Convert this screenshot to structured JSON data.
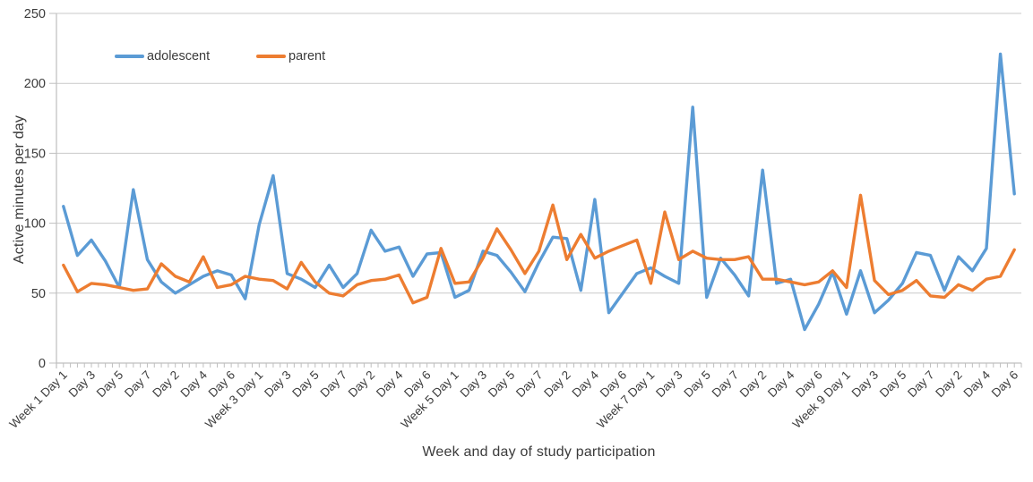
{
  "legend": {
    "items": [
      {
        "label": "adolescent",
        "color": "#5B9BD5"
      },
      {
        "label": "parent",
        "color": "#ED7D31"
      }
    ]
  },
  "chart_data": {
    "type": "line",
    "title": "",
    "xlabel": "Week and day of study participation",
    "ylabel": "Active minutes per day",
    "ylim": [
      0,
      250
    ],
    "yticks": [
      0,
      50,
      100,
      150,
      200,
      250
    ],
    "grid": true,
    "legend_position": "top-left-inside",
    "label_every_n_points": 2,
    "x_tick_labels": [
      "Week 1 Day 1",
      "Day 3",
      "Day 5",
      "Day 7",
      "Day 2",
      "Day 4",
      "Day 6",
      "Week 3 Day 1",
      "Day 3",
      "Day 5",
      "Day 7",
      "Day 2",
      "Day 4",
      "Day 6",
      "Week 5 Day 1",
      "Day 3",
      "Day 5",
      "Day 7",
      "Day 2",
      "Day 4",
      "Day 6",
      "Week 7 Day 1",
      "Day 3",
      "Day 5",
      "Day 7",
      "Day 2",
      "Day 4",
      "Day 6",
      "Week 9 Day 1",
      "Day 3",
      "Day 5",
      "Day 7",
      "Day 2",
      "Day 4",
      "Day 6"
    ],
    "series": [
      {
        "name": "adolescent",
        "color": "#5B9BD5",
        "values": [
          112,
          77,
          88,
          73,
          54,
          124,
          74,
          58,
          50,
          56,
          62,
          66,
          63,
          46,
          99,
          134,
          64,
          60,
          54,
          70,
          54,
          64,
          95,
          80,
          83,
          62,
          78,
          79,
          47,
          52,
          80,
          77,
          65,
          51,
          72,
          90,
          89,
          52,
          117,
          36,
          50,
          64,
          68,
          62,
          57,
          183,
          47,
          75,
          63,
          48,
          138,
          57,
          60,
          24,
          42,
          65,
          35,
          66,
          36,
          45,
          57,
          79,
          77,
          52,
          76,
          66,
          82,
          221,
          121
        ]
      },
      {
        "name": "parent",
        "color": "#ED7D31",
        "values": [
          70,
          51,
          57,
          56,
          54,
          52,
          53,
          71,
          62,
          58,
          76,
          54,
          56,
          62,
          60,
          59,
          53,
          72,
          58,
          50,
          48,
          56,
          59,
          60,
          63,
          43,
          47,
          82,
          57,
          58,
          75,
          96,
          81,
          64,
          80,
          113,
          74,
          92,
          75,
          80,
          84,
          88,
          57,
          108,
          74,
          80,
          75,
          74,
          74,
          76,
          60,
          60,
          58,
          56,
          58,
          66,
          54,
          120,
          59,
          49,
          52,
          59,
          48,
          47,
          56,
          52,
          60,
          62,
          81
        ]
      }
    ],
    "style": {
      "grid_color": "#C9C9C9",
      "axis_color": "#BFBFBF",
      "text_color": "#3b3b3b",
      "line_width": 3.4
    }
  }
}
